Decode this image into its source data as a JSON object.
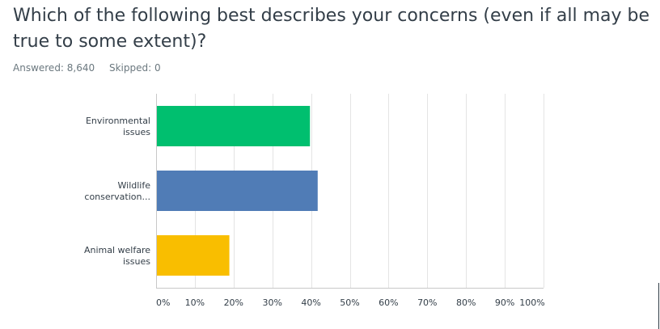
{
  "question": {
    "title": "Which of the following best describes your concerns (even if all may be true to some extent)?",
    "answered_label": "Answered: 8,640",
    "skipped_label": "Skipped: 0"
  },
  "colors": {
    "bar_environmental": "#00bf6f",
    "bar_wildlife": "#507cb6",
    "bar_animal_welfare": "#f9be00",
    "grid": "#e4e4e4",
    "axis": "#c8c8c8",
    "text": "#333e48"
  },
  "chart_data": {
    "type": "bar",
    "orientation": "horizontal",
    "categories": [
      [
        "Environmental",
        "issues"
      ],
      [
        "Wildlife",
        "conservation..."
      ],
      [
        "Animal welfare",
        "issues"
      ]
    ],
    "values": [
      39.5,
      41.5,
      18.7
    ],
    "xlim": [
      0,
      100
    ],
    "xtick_labels": [
      "0%",
      "10%",
      "20%",
      "30%",
      "40%",
      "50%",
      "60%",
      "70%",
      "80%",
      "90%",
      "100%"
    ],
    "grid": true,
    "legend": "none"
  }
}
